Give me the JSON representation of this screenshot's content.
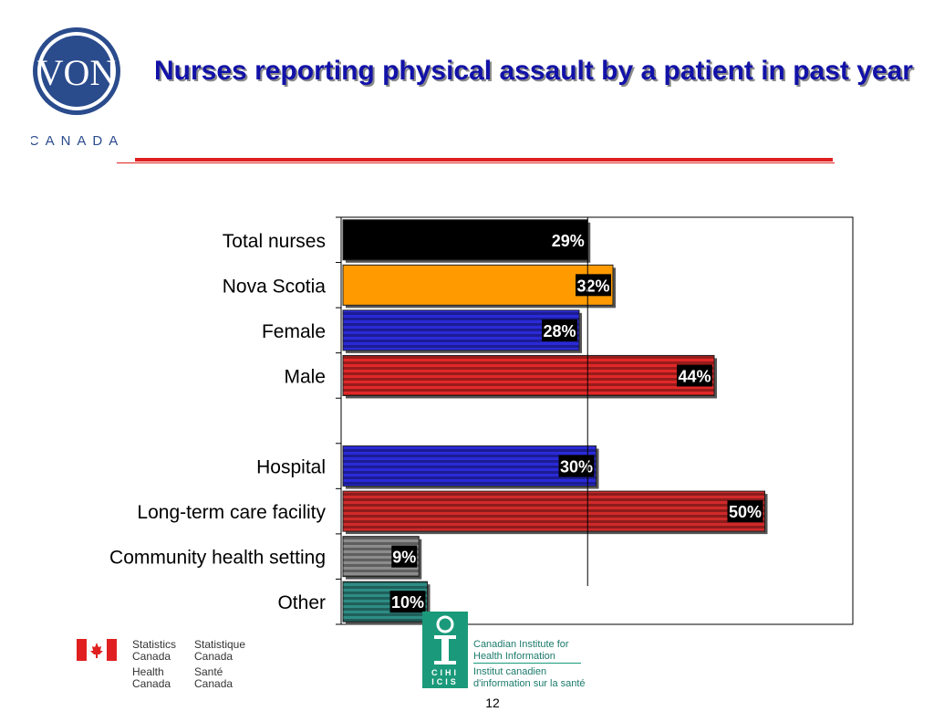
{
  "slide": {
    "title": "Nurses reporting physical assault by a patient in past year",
    "page_number": "12"
  },
  "logo": {
    "text": "VON",
    "subtext": "CANADA",
    "ring_color": "#2a4b8c"
  },
  "footer": {
    "statcan_en": "Statistics Canada",
    "statcan_fr": "Statistique Canada",
    "health_en": "Health Canada",
    "health_fr": "Santé Canada",
    "cihi_en": "Canadian Institute for Health Information",
    "cihi_fr": "Institut canadien d'information sur la santé",
    "cihi_acronym_en": "CIHI",
    "cihi_acronym_fr": "ICIS",
    "cihi_color": "#1a9a7a"
  },
  "chart_data": {
    "type": "bar",
    "orientation": "horizontal",
    "title": "Nurses reporting physical assault by a patient in past year",
    "categories": [
      "Total nurses",
      "Nova Scotia",
      "Female",
      "Male",
      "",
      "Hospital",
      "Long-term care facility",
      "Community health setting",
      "Other"
    ],
    "values": [
      29,
      32,
      28,
      44,
      null,
      30,
      50,
      9,
      10
    ],
    "value_labels": [
      "29%",
      "32%",
      "28%",
      "44%",
      "",
      "30%",
      "50%",
      "9%",
      "10%"
    ],
    "colors": [
      "#000000",
      "#ff9a00",
      "#2a2ad8",
      "#e02828",
      null,
      "#2a2ad8",
      "#d02a2a",
      "#8c8c8c",
      "#2e8c84"
    ],
    "reference_line": 29,
    "xlim": [
      0,
      60
    ],
    "grid": false,
    "legend": "none"
  }
}
